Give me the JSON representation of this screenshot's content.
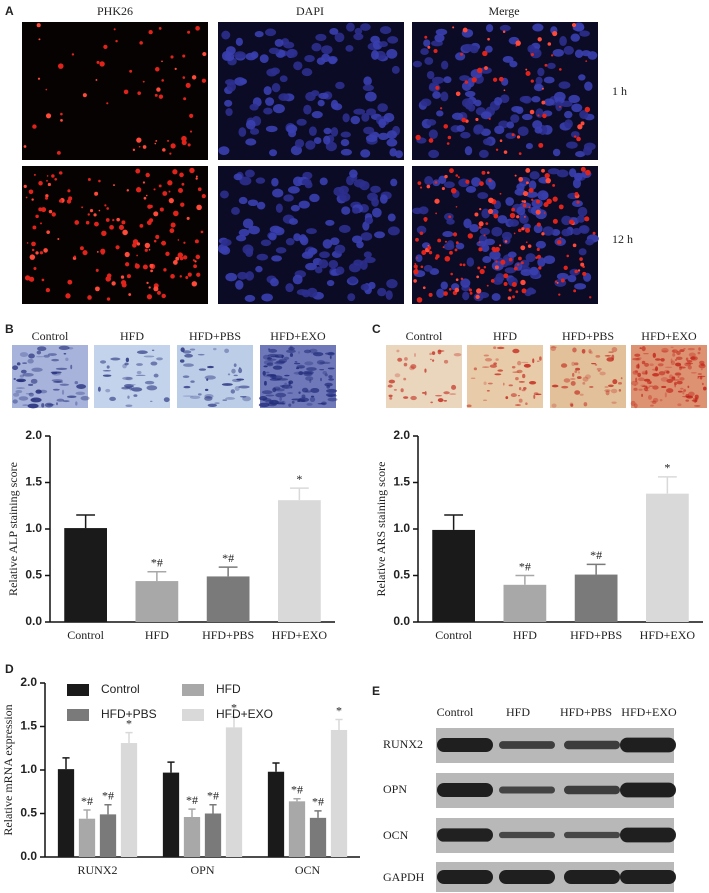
{
  "panel_a": {
    "letter": "A",
    "columns": [
      "PHK26",
      "DAPI",
      "Merge"
    ],
    "rows": [
      "1 h",
      "12 h"
    ]
  },
  "panel_b": {
    "letter": "B",
    "image_labels": [
      "Control",
      "HFD",
      "HFD+PBS",
      "HFD+EXO"
    ]
  },
  "panel_c": {
    "letter": "C",
    "image_labels": [
      "Control",
      "HFD",
      "HFD+PBS",
      "HFD+EXO"
    ]
  },
  "panel_d": {
    "letter": "D"
  },
  "panel_e": {
    "letter": "E",
    "columns": [
      "Control",
      "HFD",
      "HFD+PBS",
      "HFD+EXO"
    ],
    "rows": [
      "RUNX2",
      "OPN",
      "OCN",
      "GAPDH"
    ]
  },
  "chart_data": [
    {
      "type": "bar",
      "ylabel": "Relative ALP staining score",
      "categories": [
        "Control",
        "HFD",
        "HFD+PBS",
        "HFD+EXO"
      ],
      "values": [
        1.01,
        0.44,
        0.49,
        1.31
      ],
      "errors": [
        0.14,
        0.1,
        0.1,
        0.13
      ],
      "annotations": [
        null,
        "*#",
        "*#",
        "*"
      ],
      "colors": [
        "#1a1a1a",
        "#a8a8a8",
        "#7a7a7a",
        "#d9d9d9"
      ],
      "ylim": [
        0,
        2
      ],
      "yticks": [
        {
          "value": 0,
          "label": "0.0"
        },
        0.5,
        {
          "value": 1,
          "label": "1.0"
        },
        1.5,
        {
          "value": 2,
          "label": "2.0"
        }
      ]
    },
    {
      "type": "bar",
      "ylabel": "Relative ARS staining score",
      "categories": [
        "Control",
        "HFD",
        "HFD+PBS",
        "HFD+EXO"
      ],
      "values": [
        0.99,
        0.4,
        0.51,
        1.38
      ],
      "errors": [
        0.16,
        0.1,
        0.11,
        0.18
      ],
      "annotations": [
        null,
        "*#",
        "*#",
        "*"
      ],
      "colors": [
        "#1a1a1a",
        "#a8a8a8",
        "#7a7a7a",
        "#d9d9d9"
      ],
      "ylim": [
        0,
        2
      ],
      "yticks": [
        {
          "value": 0,
          "label": "0.0"
        },
        0.5,
        {
          "value": 1,
          "label": "1.0"
        },
        1.5,
        {
          "value": 2,
          "label": "2.0"
        }
      ]
    },
    {
      "type": "grouped_bar",
      "ylabel": "Relative mRNA expression",
      "categories": [
        "RUNX2",
        "OPN",
        "OCN"
      ],
      "series": [
        {
          "name": "Control",
          "color": "#1a1a1a",
          "values": [
            1.01,
            0.97,
            0.98
          ],
          "errors": [
            0.13,
            0.12,
            0.1
          ],
          "annotation": null
        },
        {
          "name": "HFD",
          "color": "#a8a8a8",
          "values": [
            0.44,
            0.46,
            0.64
          ],
          "errors": [
            0.1,
            0.09,
            0.03
          ],
          "annotation": "*#"
        },
        {
          "name": "HFD+PBS",
          "color": "#7a7a7a",
          "values": [
            0.49,
            0.5,
            0.45
          ],
          "errors": [
            0.11,
            0.1,
            0.08
          ],
          "annotation": "*#"
        },
        {
          "name": "HFD+EXO",
          "color": "#d9d9d9",
          "values": [
            1.31,
            1.49,
            1.46
          ],
          "errors": [
            0.12,
            0.12,
            0.12
          ],
          "annotation": "*"
        }
      ],
      "ylim": [
        0,
        2
      ],
      "yticks": [
        {
          "value": 0,
          "label": "0.0"
        },
        0.5,
        {
          "value": 1,
          "label": "1.0"
        },
        1.5,
        {
          "value": 2,
          "label": "2.0"
        }
      ]
    }
  ]
}
